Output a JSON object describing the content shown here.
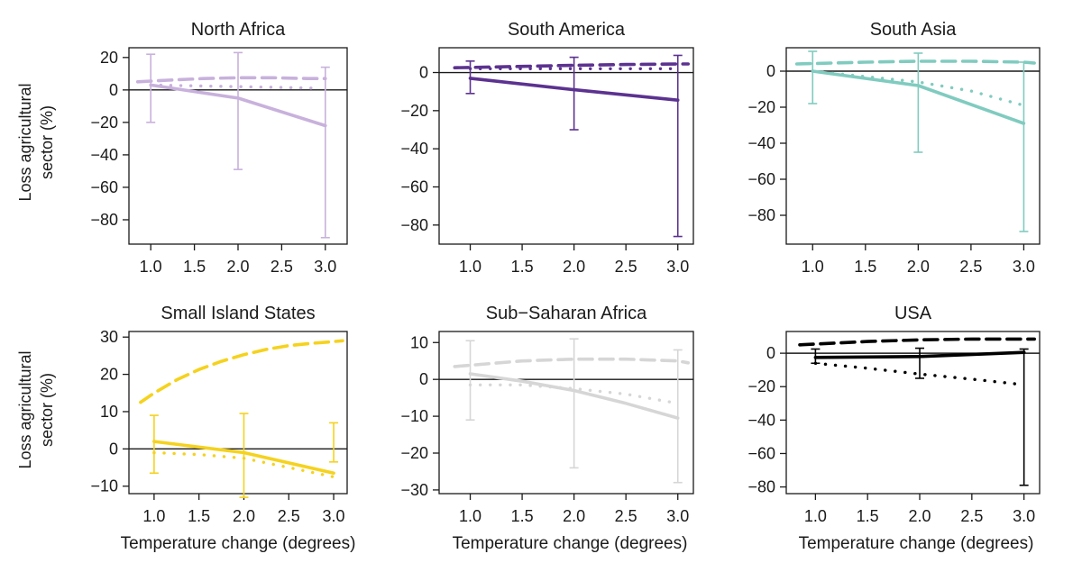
{
  "figure": {
    "ylabel_line1": "Loss agricultural",
    "ylabel_line2": "sector (%)",
    "xlabel": "Temperature change (degrees)"
  },
  "chart_data": [
    {
      "type": "line",
      "title": "North Africa",
      "color": "#c8b1dc",
      "xlabel": "Temperature change (degrees)",
      "ylabel": "Loss agricultural sector (%)",
      "xlim": [
        0.75,
        3.25
      ],
      "ylim": [
        -95,
        26
      ],
      "xticks": [
        1.0,
        1.5,
        2.0,
        2.5,
        3.0
      ],
      "yticks": [
        -80,
        -60,
        -40,
        -20,
        0,
        20
      ],
      "series": [
        {
          "style": "solid",
          "x": [
            1.0,
            2.0,
            3.0
          ],
          "y": [
            3,
            -5,
            -22
          ]
        },
        {
          "style": "dashed",
          "x": [
            0.85,
            1.2,
            1.6,
            2.0,
            2.4,
            2.8,
            3.0
          ],
          "y": [
            5,
            6,
            7,
            7.5,
            7.5,
            7,
            7
          ]
        },
        {
          "style": "dotted",
          "x": [
            1.0,
            1.5,
            2.0,
            2.5,
            2.9
          ],
          "y": [
            3,
            2.5,
            2,
            1.5,
            1
          ]
        }
      ],
      "errorbars": [
        {
          "x": 1.0,
          "low": -20,
          "high": 22
        },
        {
          "x": 2.0,
          "low": -49,
          "high": 23
        },
        {
          "x": 3.0,
          "low": -91,
          "high": 14
        }
      ]
    },
    {
      "type": "line",
      "title": "South America",
      "color": "#5c3290",
      "xlabel": "Temperature change (degrees)",
      "ylabel": "Loss agricultural sector (%)",
      "xlim": [
        0.7,
        3.15
      ],
      "ylim": [
        -90,
        13
      ],
      "xticks": [
        1.0,
        1.5,
        2.0,
        2.5,
        3.0
      ],
      "yticks": [
        -80,
        -60,
        -40,
        -20,
        0
      ],
      "series": [
        {
          "style": "solid",
          "x": [
            1.0,
            2.0,
            3.0
          ],
          "y": [
            -3,
            -9,
            -14.5
          ]
        },
        {
          "style": "dashed",
          "x": [
            0.85,
            1.5,
            2.0,
            2.5,
            3.0,
            3.1
          ],
          "y": [
            2.5,
            3.2,
            3.8,
            4.2,
            4.5,
            4.5
          ]
        },
        {
          "style": "dotted",
          "x": [
            1.0,
            1.5,
            2.0,
            2.5,
            3.0
          ],
          "y": [
            2,
            2,
            2,
            2,
            2
          ]
        }
      ],
      "errorbars": [
        {
          "x": 1.0,
          "low": -11,
          "high": 6
        },
        {
          "x": 2.0,
          "low": -30,
          "high": 8
        },
        {
          "x": 3.0,
          "low": -86,
          "high": 9
        }
      ]
    },
    {
      "type": "line",
      "title": "South Asia",
      "color": "#80cbbf",
      "xlabel": "Temperature change (degrees)",
      "ylabel": "Loss agricultural sector (%)",
      "xlim": [
        0.75,
        3.15
      ],
      "ylim": [
        -96,
        13
      ],
      "xticks": [
        1.0,
        1.5,
        2.0,
        2.5,
        3.0
      ],
      "yticks": [
        -80,
        -60,
        -40,
        -20,
        0
      ],
      "series": [
        {
          "style": "solid",
          "x": [
            1.0,
            2.0,
            3.0
          ],
          "y": [
            0,
            -8,
            -29
          ]
        },
        {
          "style": "dashed",
          "x": [
            0.85,
            1.5,
            2.0,
            2.5,
            3.0,
            3.1
          ],
          "y": [
            4,
            5,
            5.5,
            5.5,
            5,
            4.5
          ]
        },
        {
          "style": "dotted",
          "x": [
            1.0,
            1.5,
            2.0,
            2.5,
            3.0
          ],
          "y": [
            0,
            -3,
            -6,
            -11,
            -19
          ]
        }
      ],
      "errorbars": [
        {
          "x": 1.0,
          "low": -18,
          "high": 11
        },
        {
          "x": 2.0,
          "low": -45,
          "high": 10
        },
        {
          "x": 3.0,
          "low": -89,
          "high": 5
        }
      ]
    },
    {
      "type": "line",
      "title": "Small Island States",
      "color": "#f5d21e",
      "xlabel": "Temperature change (degrees)",
      "ylabel": "Loss agricultural sector (%)",
      "xlim": [
        0.72,
        3.15
      ],
      "ylim": [
        -12,
        31.5
      ],
      "xticks": [
        1.0,
        1.5,
        2.0,
        2.5,
        3.0
      ],
      "yticks": [
        -10,
        0,
        10,
        20,
        30
      ],
      "series": [
        {
          "style": "solid",
          "x": [
            1.0,
            2.0,
            3.0
          ],
          "y": [
            2,
            -1,
            -6.5
          ]
        },
        {
          "style": "dashed",
          "x": [
            0.85,
            1.0,
            1.25,
            1.5,
            1.75,
            2.0,
            2.25,
            2.5,
            2.75,
            3.0,
            3.1
          ],
          "y": [
            12.5,
            15,
            18.5,
            21.3,
            23.5,
            25.3,
            26.7,
            27.7,
            28.3,
            28.8,
            29
          ]
        },
        {
          "style": "dotted",
          "x": [
            1.0,
            1.5,
            2.0,
            2.5,
            3.0
          ],
          "y": [
            -1,
            -1.5,
            -2.5,
            -5,
            -7.5
          ]
        }
      ],
      "errorbars": [
        {
          "x": 1.0,
          "low": -6.5,
          "high": 9
        },
        {
          "x": 2.0,
          "low": -13,
          "high": 9.5
        },
        {
          "x": 3.0,
          "low": -3.5,
          "high": 7
        }
      ]
    },
    {
      "type": "line",
      "title": "Sub−Saharan Africa",
      "color": "#d6d6d6",
      "xlabel": "Temperature change (degrees)",
      "ylabel": "Loss agricultural sector (%)",
      "xlim": [
        0.7,
        3.15
      ],
      "ylim": [
        -31,
        13
      ],
      "xticks": [
        1.0,
        1.5,
        2.0,
        2.5,
        3.0
      ],
      "yticks": [
        -30,
        -20,
        -10,
        0,
        10
      ],
      "series": [
        {
          "style": "solid",
          "x": [
            1.0,
            1.5,
            2.0,
            2.5,
            3.0
          ],
          "y": [
            1.5,
            -0.5,
            -3,
            -6.5,
            -10.5
          ]
        },
        {
          "style": "dashed",
          "x": [
            0.85,
            1.5,
            2.0,
            2.5,
            3.0,
            3.1
          ],
          "y": [
            3.5,
            5,
            5.5,
            5.5,
            5,
            4.5
          ]
        },
        {
          "style": "dotted",
          "x": [
            1.0,
            1.5,
            2.0,
            2.5,
            3.0
          ],
          "y": [
            -1.5,
            -1.5,
            -2.5,
            -4,
            -6.5
          ]
        }
      ],
      "errorbars": [
        {
          "x": 1.0,
          "low": -11,
          "high": 10.5
        },
        {
          "x": 2.0,
          "low": -24,
          "high": 11
        },
        {
          "x": 3.0,
          "low": -28,
          "high": 8
        }
      ]
    },
    {
      "type": "line",
      "title": "USA",
      "color": "#000000",
      "xlabel": "Temperature change (degrees)",
      "ylabel": "Loss agricultural sector (%)",
      "xlim": [
        0.72,
        3.15
      ],
      "ylim": [
        -84,
        13
      ],
      "xticks": [
        1.0,
        1.5,
        2.0,
        2.5,
        3.0
      ],
      "yticks": [
        -80,
        -60,
        -40,
        -20,
        0
      ],
      "series": [
        {
          "style": "solid",
          "x": [
            1.0,
            2.0,
            3.0
          ],
          "y": [
            -2.5,
            -2,
            0.5
          ]
        },
        {
          "style": "dashed",
          "x": [
            0.85,
            1.5,
            2.0,
            2.5,
            3.0,
            3.1
          ],
          "y": [
            5,
            7,
            8,
            8.5,
            8.5,
            8.5
          ]
        },
        {
          "style": "dotted",
          "x": [
            1.0,
            1.5,
            2.0,
            2.5,
            2.95
          ],
          "y": [
            -6,
            -9,
            -12.5,
            -15.5,
            -18.5
          ]
        }
      ],
      "errorbars": [
        {
          "x": 1.0,
          "low": -6,
          "high": 2.5
        },
        {
          "x": 2.0,
          "low": -15,
          "high": 3
        },
        {
          "x": 3.0,
          "low": -79,
          "high": 2.5
        }
      ]
    }
  ]
}
